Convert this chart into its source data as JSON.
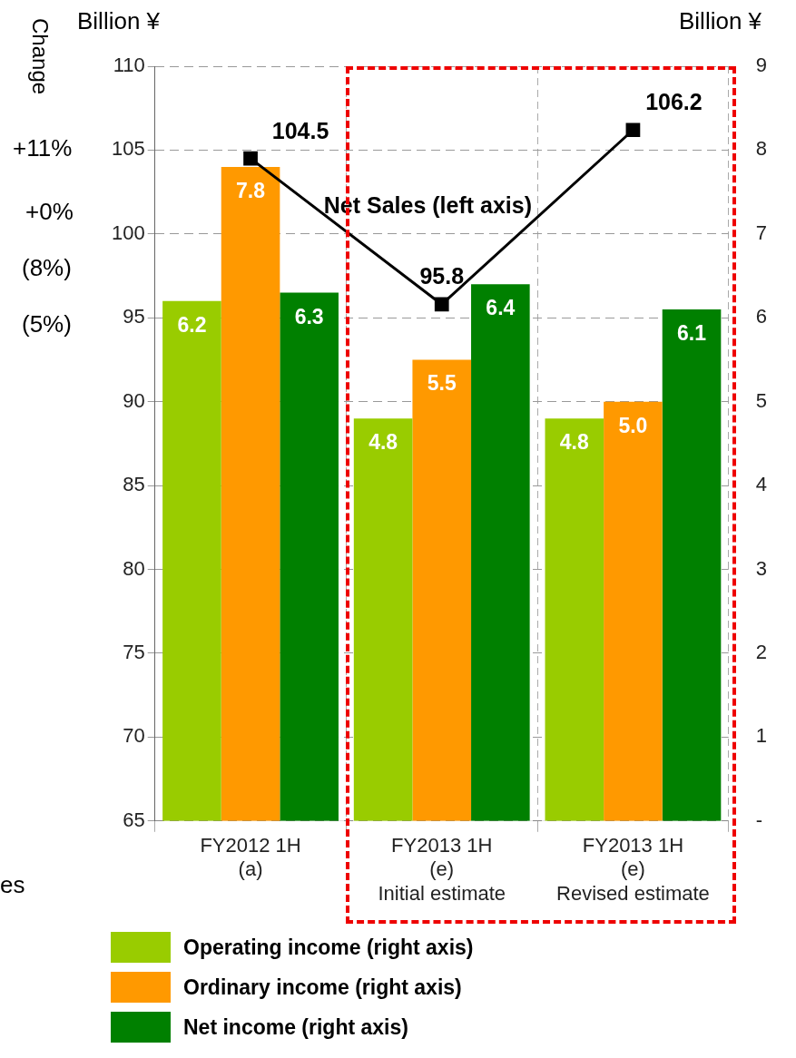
{
  "chart_data": {
    "type": "bar",
    "ylabel": "Billion ¥",
    "y2label": "Billion ¥",
    "categories": [
      "FY2012 1H\n(a)",
      "FY2013 1H\n(e)\nInitial estimate",
      "FY2013 1H\n(e)\nRevised estimate"
    ],
    "series": [
      {
        "name": "Operating income (right axis)",
        "color": "#99cc00",
        "axis": "y2",
        "values": [
          6.2,
          4.8,
          4.8
        ],
        "value_labels": [
          "6.2",
          "4.8",
          "4.8"
        ]
      },
      {
        "name": "Ordinary income (right axis)",
        "color": "#ff9900",
        "axis": "y2",
        "values": [
          7.8,
          5.5,
          5.0
        ],
        "value_labels": [
          "7.8",
          "5.5",
          "5.0"
        ]
      },
      {
        "name": "Net income (right axis)",
        "color": "#008000",
        "axis": "y2",
        "values": [
          6.3,
          6.4,
          6.1
        ],
        "value_labels": [
          "6.3",
          "6.4",
          "6.1"
        ]
      },
      {
        "name": "Net Sales (left axis)",
        "type": "line",
        "color": "#000000",
        "axis": "y",
        "values": [
          104.5,
          95.8,
          106.2
        ],
        "value_labels": [
          "104.5",
          "95.8",
          "106.2"
        ]
      }
    ],
    "ylim": [
      65,
      110
    ],
    "yticks": [
      65,
      70,
      75,
      80,
      85,
      90,
      95,
      100,
      105,
      110
    ],
    "y2lim": [
      0,
      9
    ],
    "y2ticks": [
      {
        "value": 0,
        "label": "-"
      },
      1,
      2,
      3,
      4,
      5,
      6,
      7,
      8,
      9
    ],
    "grid": true,
    "legend": "bottom",
    "marker": "square",
    "line_style": "solid",
    "annotations": [
      "Change",
      "+11%",
      "+0%",
      "(8%)",
      "(5%)",
      "es"
    ]
  }
}
